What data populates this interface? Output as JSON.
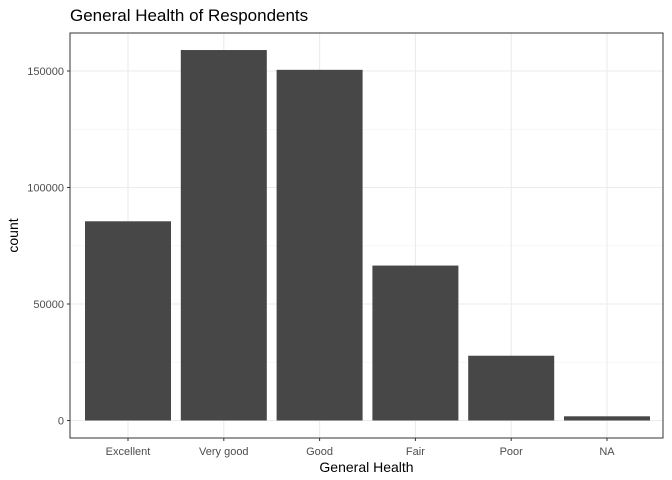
{
  "chart_data": {
    "type": "bar",
    "title": "General Health of Respondents",
    "xlabel": "General Health",
    "ylabel": "count",
    "categories": [
      "Excellent",
      "Very good",
      "Good",
      "Fair",
      "Poor",
      "NA"
    ],
    "values": [
      85500,
      159000,
      150500,
      66500,
      27800,
      1800
    ],
    "ylim": [
      0,
      165000
    ],
    "yticks": [
      0,
      50000,
      100000,
      150000
    ],
    "ytick_labels": [
      "0",
      "50000",
      "100000",
      "150000"
    ],
    "bar_color": "#474747",
    "grid": true,
    "grid_color": "#ebebeb",
    "panel_border_color": "#333333",
    "theme": "bw"
  }
}
